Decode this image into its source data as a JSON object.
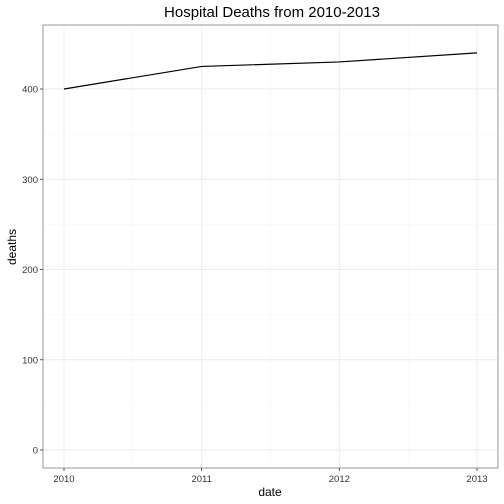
{
  "chart_data": {
    "type": "line",
    "title": "Hospital Deaths from 2010-2013",
    "xlabel": "date",
    "ylabel": "deaths",
    "x": [
      "2010",
      "2011",
      "2012",
      "2013"
    ],
    "series": [
      {
        "values": [
          400,
          425,
          430,
          440
        ]
      }
    ],
    "xlim": [
      2010,
      2013
    ],
    "ylim": [
      0,
      440
    ],
    "yticks": [
      0,
      100,
      200,
      300,
      400
    ],
    "xticks": [
      "2010",
      "2011",
      "2012",
      "2013"
    ],
    "grid": true,
    "line_color": "#000000"
  }
}
